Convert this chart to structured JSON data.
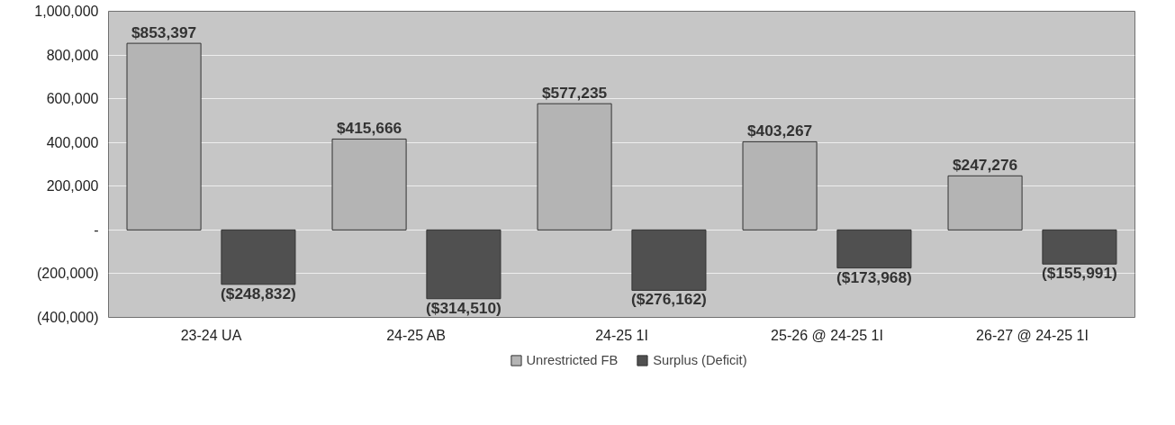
{
  "chart_data": {
    "type": "bar",
    "categories": [
      "23-24 UA",
      "24-25 AB",
      "24-25 1I",
      "25-26 @ 24-25 1I",
      "26-27 @ 24-25 1I"
    ],
    "series": [
      {
        "name": "Unrestricted FB",
        "color": "#b4b4b4",
        "values": [
          853397,
          415666,
          577235,
          403267,
          247276
        ],
        "value_labels": [
          "$853,397",
          "$415,666",
          "$577,235",
          "$403,267",
          "$247,276"
        ]
      },
      {
        "name": "Surplus (Deficit)",
        "color": "#505050",
        "values": [
          -248832,
          -314510,
          -276162,
          -173968,
          -155991
        ],
        "value_labels": [
          "($248,832)",
          "($314,510)",
          "($276,162)",
          "($173,968)",
          "($155,991)"
        ]
      }
    ],
    "ylim": [
      -400000,
      1000000
    ],
    "yticks": [
      {
        "value": -400000,
        "label": "(400,000)"
      },
      {
        "value": -200000,
        "label": "(200,000)"
      },
      {
        "value": 0,
        "label": "-"
      },
      {
        "value": 200000,
        "label": "200,000"
      },
      {
        "value": 400000,
        "label": "400,000"
      },
      {
        "value": 600000,
        "label": "600,000"
      },
      {
        "value": 800000,
        "label": "800,000"
      },
      {
        "value": 1000000,
        "label": "1,000,000"
      }
    ],
    "grid": "y",
    "legend": "bottom"
  }
}
